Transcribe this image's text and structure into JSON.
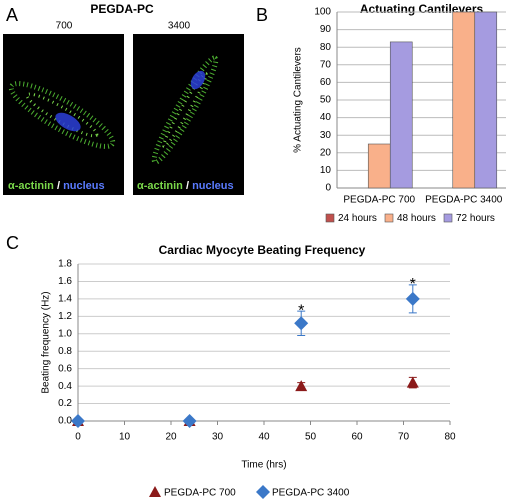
{
  "figure": {
    "panel_labels": [
      "A",
      "B",
      "C"
    ],
    "image_panel": {
      "title": "PEGDA-PC",
      "images": [
        {
          "label": "700"
        },
        {
          "label": "3400"
        }
      ],
      "caption": {
        "stain1": "α-actinin",
        "separator": "/",
        "stain2": "nucleus"
      }
    }
  },
  "chart_data": [
    {
      "type": "bar",
      "title": "Actuating Cantilevers",
      "y_label": "% Actuating Cantilevers",
      "categories": [
        "PEGDA-PC 700",
        "PEGDA-PC 3400"
      ],
      "series": [
        {
          "name": "24 hours",
          "color": "#c0504d",
          "values": [
            0,
            0
          ]
        },
        {
          "name": "48 hours",
          "color": "#f9b08a",
          "values": [
            25,
            100
          ]
        },
        {
          "name": "72 hours",
          "color": "#a59be0",
          "values": [
            83,
            100
          ]
        }
      ],
      "ylim": [
        0,
        100
      ],
      "yticks": [
        0,
        10,
        20,
        30,
        40,
        50,
        60,
        70,
        80,
        90,
        100
      ],
      "grid": true,
      "legend": "bottom"
    },
    {
      "type": "scatter",
      "title": "Cardiac Myocyte Beating Frequency",
      "x_label": "Time (hrs)",
      "y_label": "Beating frequency (Hz)",
      "x": [
        0,
        24,
        48,
        72
      ],
      "series": [
        {
          "name": "PEGDA-PC 700",
          "color": "#8b1a1a",
          "marker": "triangle",
          "values": [
            0,
            0,
            0.4,
            0.44
          ],
          "errors": [
            0,
            0,
            0.04,
            0.06
          ]
        },
        {
          "name": "PEGDA-PC 3400",
          "color": "#3b78c8",
          "marker": "diamond",
          "values": [
            0,
            0,
            1.12,
            1.4
          ],
          "errors": [
            0,
            0,
            0.14,
            0.16
          ]
        }
      ],
      "annotations": [
        {
          "text": "*",
          "x": 48,
          "y": 1.26
        },
        {
          "text": "*",
          "x": 72,
          "y": 1.56
        }
      ],
      "xlim": [
        0,
        80
      ],
      "xticks": [
        0,
        10,
        20,
        30,
        40,
        50,
        60,
        70,
        80
      ],
      "ylim": [
        0,
        1.8
      ],
      "yticks": [
        {
          "value": 0,
          "label": "0.0"
        },
        0.2,
        0.4,
        0.6,
        0.8,
        {
          "value": 1,
          "label": "1.0"
        },
        1.2,
        1.4,
        1.6,
        1.8
      ],
      "grid": true,
      "legend": "bottom"
    }
  ]
}
